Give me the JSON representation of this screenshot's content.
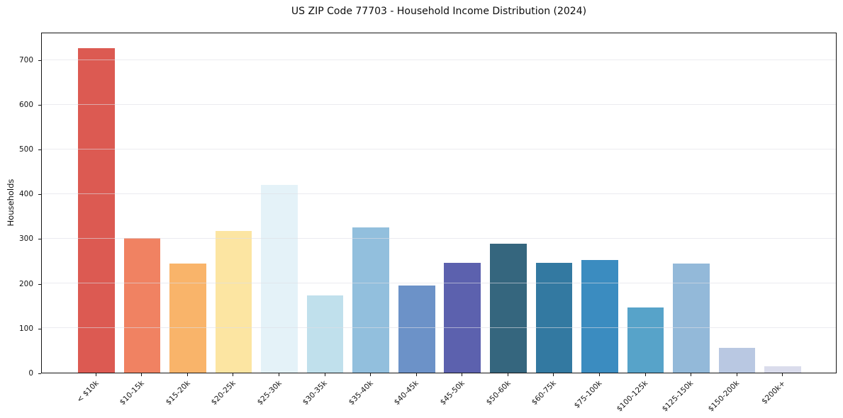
{
  "title": "US ZIP Code 77703 - Household Income Distribution (2024)",
  "chart_data": {
    "type": "bar",
    "title": "US ZIP Code 77703 - Household Income Distribution (2024)",
    "xlabel": "",
    "ylabel": "Households",
    "categories": [
      "< $10k",
      "$10-15k",
      "$15-20k",
      "$20-25k",
      "$25-30k",
      "$30-35k",
      "$35-40k",
      "$40-45k",
      "$45-50k",
      "$50-60k",
      "$60-75k",
      "$75-100k",
      "$100-125k",
      "$125-150k",
      "$150-200k",
      "$200k+"
    ],
    "values": [
      727,
      302,
      244,
      318,
      421,
      173,
      325,
      195,
      246,
      289,
      246,
      252,
      146,
      244,
      55,
      15
    ],
    "bar_colors": [
      "#dc5a52",
      "#f08262",
      "#f9b46a",
      "#fce5a2",
      "#e4f2f8",
      "#c0e0ec",
      "#92bfdd",
      "#6c92c8",
      "#5c61ae",
      "#35667e",
      "#3379a1",
      "#3b8cc0",
      "#57a3c9",
      "#93b9d9",
      "#b9c8e2",
      "#dadcec"
    ],
    "yticks": [
      0,
      100,
      200,
      300,
      400,
      500,
      600,
      700
    ],
    "ylim": [
      0,
      761
    ],
    "grid": "horizontal",
    "grid_color": "rgba(221,221,230,0.6)",
    "legend": "none",
    "background_color": "#ffffff",
    "axis_color": "#151515",
    "text_color": "#141414"
  }
}
